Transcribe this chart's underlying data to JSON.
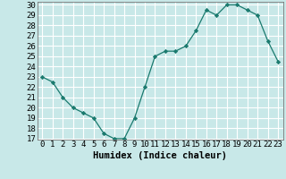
{
  "x": [
    0,
    1,
    2,
    3,
    4,
    5,
    6,
    7,
    8,
    9,
    10,
    11,
    12,
    13,
    14,
    15,
    16,
    17,
    18,
    19,
    20,
    21,
    22,
    23
  ],
  "y": [
    23,
    22.5,
    21,
    20,
    19.5,
    19,
    17.5,
    17,
    17,
    19,
    22,
    25,
    25.5,
    25.5,
    26,
    27.5,
    29.5,
    29,
    30,
    30,
    29.5,
    29,
    26.5,
    24.5
  ],
  "xlabel": "Humidex (Indice chaleur)",
  "xlim": [
    -0.5,
    23.5
  ],
  "ylim": [
    17,
    30
  ],
  "yticks": [
    17,
    18,
    19,
    20,
    21,
    22,
    23,
    24,
    25,
    26,
    27,
    28,
    29,
    30
  ],
  "xticks": [
    0,
    1,
    2,
    3,
    4,
    5,
    6,
    7,
    8,
    9,
    10,
    11,
    12,
    13,
    14,
    15,
    16,
    17,
    18,
    19,
    20,
    21,
    22,
    23
  ],
  "line_color": "#1a7a6e",
  "marker": "D",
  "marker_size": 2.2,
  "bg_color": "#c8e8e8",
  "grid_color": "#ffffff",
  "xlabel_fontsize": 7.5,
  "tick_fontsize": 6.5,
  "xlabel_fontweight": "bold"
}
